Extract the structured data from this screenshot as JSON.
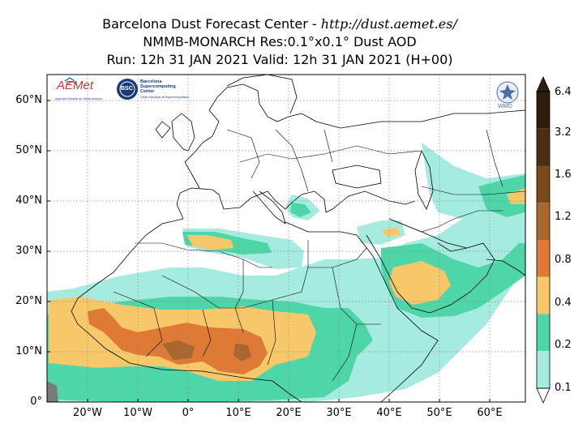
{
  "header": {
    "title_prefix": "Barcelona Dust Forecast Center - ",
    "title_url": "http://dust.aemet.es/",
    "line2": "NMMB-MONARCH   Res:0.1°x0.1°   Dust AOD",
    "line3": "Run: 12h 31 JAN 2021   Valid: 12h 31 JAN 2021 (H+00)"
  },
  "map": {
    "lat_labels": [
      "60°N",
      "50°N",
      "40°N",
      "30°N",
      "20°N",
      "10°N",
      "0°"
    ],
    "lon_labels": [
      "20°W",
      "10°W",
      "0°",
      "10°E",
      "20°E",
      "30°E",
      "40°E",
      "50°E",
      "60°E"
    ],
    "ocean_color": "#ffffff",
    "border_color": "#000000",
    "grid": "dotted"
  },
  "colorbar": {
    "labels": [
      "6.4",
      "3.2",
      "1.6",
      "1.2",
      "0.8",
      "0.4",
      "0.2",
      "0.1"
    ],
    "colors": [
      "#2f1d0c",
      "#4a2f14",
      "#7a4a1c",
      "#a9672b",
      "#de7a35",
      "#f6c86a",
      "#4fd6a8",
      "#a6ebe0"
    ]
  },
  "logos": {
    "aemet": "AEMet",
    "aemet_sub": "Agencia Estatal de Meteorología",
    "bsc": "BSC",
    "bsc_name": "Barcelona Supercomputing Center",
    "bsc_sub": "Centro Nacional de Supercomputación",
    "wmo": "WMO"
  }
}
